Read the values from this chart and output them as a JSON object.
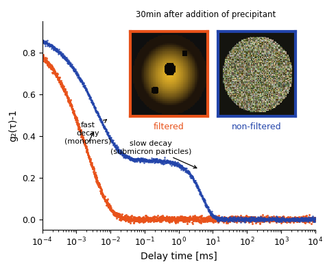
{
  "title": "30min after addition of precipitant",
  "xlabel": "Delay time [ms]",
  "ylabel": "g₂(τ)-1",
  "ylim": [
    -0.05,
    0.95
  ],
  "yticks": [
    0.0,
    0.2,
    0.4,
    0.6,
    0.8
  ],
  "orange_color": "#e8521a",
  "blue_color": "#2244aa",
  "fast_decay_label": "fast\ndecay\n(monomers)",
  "slow_decay_label": "slow decay\n(submicron particles)",
  "filtered_label": "filtered",
  "nonfiltered_label": "non-filtered"
}
